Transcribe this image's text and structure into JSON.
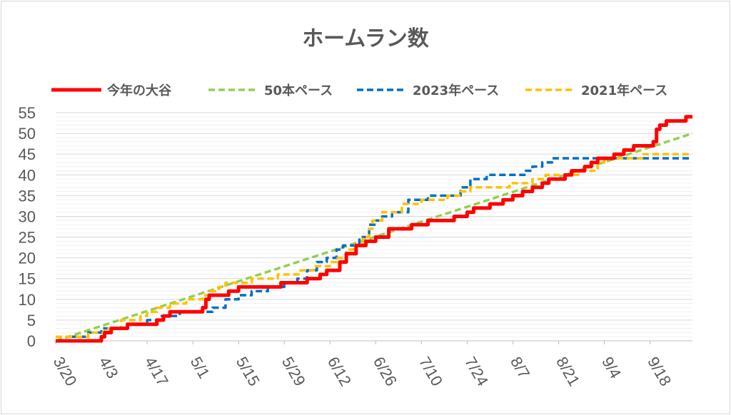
{
  "chart_data": {
    "type": "line",
    "title": "ホームラン数",
    "legend_position": "top",
    "grid": true,
    "x_start": "3/20",
    "ylim": [
      0,
      55
    ],
    "y_ticks": [
      0,
      5,
      10,
      15,
      20,
      25,
      30,
      35,
      40,
      45,
      50,
      55
    ],
    "x_tick_labels": [
      "3/20",
      "4/3",
      "4/17",
      "5/1",
      "5/15",
      "5/29",
      "6/12",
      "6/26",
      "7/10",
      "7/24",
      "8/7",
      "8/21",
      "9/4",
      "9/18"
    ],
    "x_tick_days": [
      0,
      14,
      28,
      42,
      56,
      70,
      84,
      98,
      112,
      126,
      140,
      154,
      168,
      182
    ],
    "x_max_day": 195,
    "series": [
      {
        "name": "今年の大谷",
        "color": "#ff0000",
        "style": "solid",
        "step": true,
        "points": [
          [
            0,
            0
          ],
          [
            13,
            0
          ],
          [
            14,
            1
          ],
          [
            15,
            2
          ],
          [
            17,
            3
          ],
          [
            22,
            4
          ],
          [
            31,
            5
          ],
          [
            33,
            6
          ],
          [
            35,
            7
          ],
          [
            45,
            8
          ],
          [
            46,
            10
          ],
          [
            47,
            11
          ],
          [
            53,
            12
          ],
          [
            56,
            13
          ],
          [
            69,
            14
          ],
          [
            77,
            15
          ],
          [
            81,
            16
          ],
          [
            83,
            17
          ],
          [
            87,
            19
          ],
          [
            89,
            21
          ],
          [
            92,
            23
          ],
          [
            95,
            24
          ],
          [
            98,
            25
          ],
          [
            102,
            27
          ],
          [
            109,
            28
          ],
          [
            114,
            29
          ],
          [
            122,
            30
          ],
          [
            126,
            31
          ],
          [
            128,
            32
          ],
          [
            133,
            33
          ],
          [
            137,
            34
          ],
          [
            140,
            35
          ],
          [
            143,
            36
          ],
          [
            146,
            37
          ],
          [
            149,
            38
          ],
          [
            151,
            39
          ],
          [
            156,
            40
          ],
          [
            158,
            41
          ],
          [
            162,
            42
          ],
          [
            164,
            43
          ],
          [
            166,
            44
          ],
          [
            171,
            45
          ],
          [
            174,
            46
          ],
          [
            177,
            47
          ],
          [
            183,
            48
          ],
          [
            184,
            51
          ],
          [
            185,
            52
          ],
          [
            187,
            53
          ],
          [
            193,
            54
          ],
          [
            195,
            54
          ]
        ]
      },
      {
        "name": "50本ペース",
        "color": "#92d050",
        "style": "dashed",
        "step": false,
        "points": [
          [
            0,
            0
          ],
          [
            195,
            50
          ]
        ]
      },
      {
        "name": "2023年ペース",
        "color": "#0070c0",
        "style": "dashed",
        "step": true,
        "points": [
          [
            0,
            0
          ],
          [
            5,
            1
          ],
          [
            10,
            2
          ],
          [
            14,
            3
          ],
          [
            22,
            4
          ],
          [
            28,
            5
          ],
          [
            32,
            6
          ],
          [
            38,
            7
          ],
          [
            48,
            8
          ],
          [
            52,
            10
          ],
          [
            56,
            11
          ],
          [
            60,
            12
          ],
          [
            65,
            13
          ],
          [
            70,
            14
          ],
          [
            74,
            15
          ],
          [
            77,
            17
          ],
          [
            80,
            19
          ],
          [
            83,
            20
          ],
          [
            86,
            22
          ],
          [
            88,
            23
          ],
          [
            93,
            25
          ],
          [
            96,
            28
          ],
          [
            98,
            29
          ],
          [
            100,
            30
          ],
          [
            103,
            31
          ],
          [
            108,
            34
          ],
          [
            114,
            35
          ],
          [
            124,
            37
          ],
          [
            127,
            39
          ],
          [
            132,
            40
          ],
          [
            144,
            41
          ],
          [
            146,
            42
          ],
          [
            149,
            43
          ],
          [
            152,
            44
          ],
          [
            195,
            44
          ]
        ]
      },
      {
        "name": "2021年ペース",
        "color": "#ffc000",
        "style": "dashed",
        "step": true,
        "points": [
          [
            0,
            1
          ],
          [
            10,
            2
          ],
          [
            15,
            3
          ],
          [
            20,
            5
          ],
          [
            26,
            6
          ],
          [
            28,
            7
          ],
          [
            31,
            8
          ],
          [
            35,
            9
          ],
          [
            40,
            10
          ],
          [
            45,
            11
          ],
          [
            47,
            12
          ],
          [
            50,
            13
          ],
          [
            52,
            14
          ],
          [
            60,
            15
          ],
          [
            68,
            16
          ],
          [
            75,
            17
          ],
          [
            79,
            18
          ],
          [
            84,
            19
          ],
          [
            86,
            20
          ],
          [
            89,
            22
          ],
          [
            91,
            23
          ],
          [
            94,
            25
          ],
          [
            96,
            27
          ],
          [
            97,
            29
          ],
          [
            100,
            31
          ],
          [
            106,
            33
          ],
          [
            112,
            34
          ],
          [
            120,
            35
          ],
          [
            124,
            36
          ],
          [
            127,
            37
          ],
          [
            139,
            38
          ],
          [
            146,
            39
          ],
          [
            150,
            40
          ],
          [
            160,
            41
          ],
          [
            166,
            43
          ],
          [
            168,
            44
          ],
          [
            180,
            45
          ],
          [
            195,
            45
          ]
        ]
      }
    ]
  }
}
